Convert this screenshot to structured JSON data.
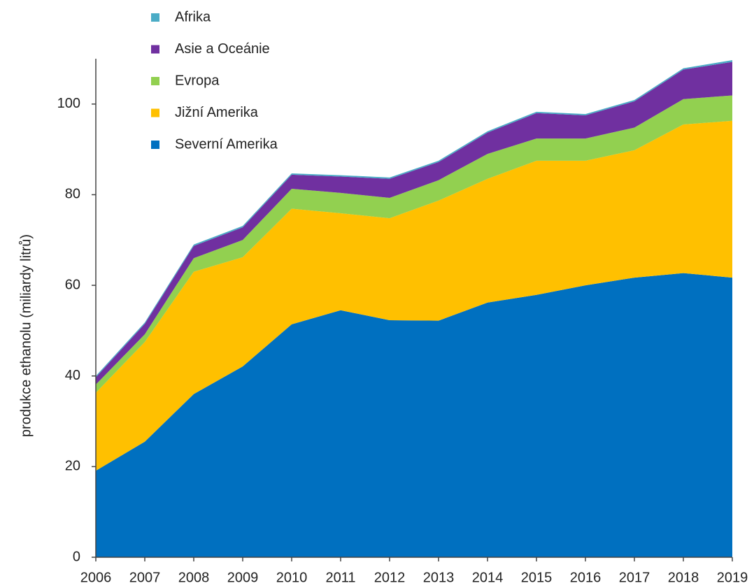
{
  "chart_data": {
    "type": "stacked_area",
    "y_label": "produkce ethanolu (miliardy litrů)",
    "categories": [
      "2006",
      "2007",
      "2008",
      "2009",
      "2010",
      "2011",
      "2012",
      "2013",
      "2014",
      "2015",
      "2016",
      "2017",
      "2018",
      "2019"
    ],
    "series": [
      {
        "name": "Severní Amerika",
        "color": "#0070c0",
        "values": [
          19.1,
          25.5,
          36,
          42.1,
          51.4,
          54.5,
          52.3,
          52.2,
          56.2,
          57.9,
          60,
          61.7,
          62.7,
          61.7
        ]
      },
      {
        "name": "Jižní Amerika",
        "color": "#ffc000",
        "values": [
          17.2,
          22,
          27,
          24.1,
          25.5,
          21.4,
          22.5,
          26.5,
          27.3,
          29.6,
          27.5,
          28.1,
          32.8,
          34.6
        ]
      },
      {
        "name": "Evropa",
        "color": "#92d050",
        "values": [
          1.8,
          1.7,
          3,
          3.8,
          4.4,
          4.5,
          4.5,
          4.5,
          5.5,
          4.9,
          4.9,
          5,
          5.6,
          5.6
        ]
      },
      {
        "name": "Asie a Oceánie",
        "color": "#7030a0",
        "values": [
          1.6,
          2.3,
          2.7,
          2.8,
          3.1,
          3.6,
          4.2,
          4,
          4.7,
          5.6,
          5.1,
          5.8,
          6.5,
          7.4
        ]
      },
      {
        "name": "Afrika",
        "color": "#4bacc6",
        "values": [
          0.3,
          0.3,
          0.3,
          0.3,
          0.3,
          0.3,
          0.3,
          0.3,
          0.3,
          0.3,
          0.3,
          0.3,
          0.3,
          0.4
        ]
      }
    ],
    "ylim": [
      0,
      110
    ],
    "yticks": [
      0,
      20,
      40,
      60,
      80,
      100
    ],
    "grid": false
  }
}
